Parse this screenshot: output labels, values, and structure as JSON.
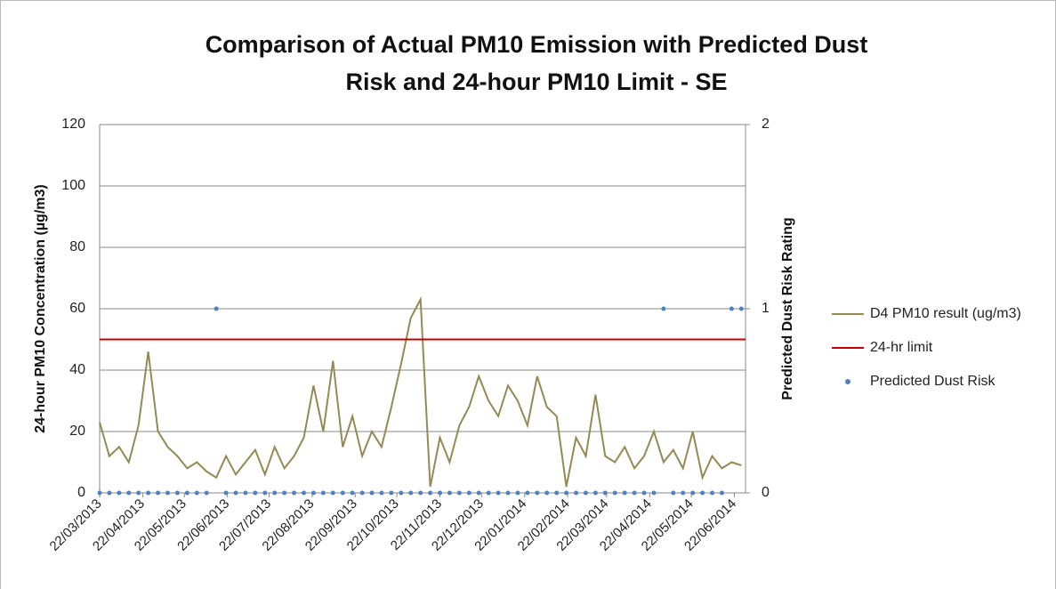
{
  "chart_data": {
    "type": "line",
    "title": [
      "Comparison of Actual PM10 Emission with Predicted Dust",
      "Risk and 24-hour PM10 Limit - SE"
    ],
    "y_label": "24-hour PM10 Concentration (µg/m3)",
    "y2_label": "Predicted Dust Risk Rating",
    "x": [
      "22/03/2013",
      "29/03/2013",
      "05/04/2013",
      "12/04/2013",
      "19/04/2013",
      "26/04/2013",
      "03/05/2013",
      "10/05/2013",
      "17/05/2013",
      "24/05/2013",
      "31/05/2013",
      "07/06/2013",
      "14/06/2013",
      "21/06/2013",
      "28/06/2013",
      "05/07/2013",
      "12/07/2013",
      "19/07/2013",
      "26/07/2013",
      "02/08/2013",
      "09/08/2013",
      "16/08/2013",
      "23/08/2013",
      "30/08/2013",
      "06/09/2013",
      "13/09/2013",
      "20/09/2013",
      "27/09/2013",
      "04/10/2013",
      "11/10/2013",
      "18/10/2013",
      "25/10/2013",
      "01/11/2013",
      "08/11/2013",
      "15/11/2013",
      "22/11/2013",
      "29/11/2013",
      "06/12/2013",
      "13/12/2013",
      "20/12/2013",
      "27/12/2013",
      "03/01/2014",
      "10/01/2014",
      "17/01/2014",
      "24/01/2014",
      "31/01/2014",
      "07/02/2014",
      "14/02/2014",
      "21/02/2014",
      "28/02/2014",
      "07/03/2014",
      "14/03/2014",
      "21/03/2014",
      "28/03/2014",
      "04/04/2014",
      "11/04/2014",
      "18/04/2014",
      "25/04/2014",
      "02/05/2014",
      "09/05/2014",
      "16/05/2014",
      "23/05/2014",
      "30/05/2014",
      "06/06/2014",
      "13/06/2014",
      "20/06/2014",
      "27/06/2014"
    ],
    "series": [
      {
        "name": "D4 PM10 result (ug/m3)",
        "type": "line",
        "color": "#948a54",
        "values": [
          23,
          12,
          15,
          10,
          22,
          46,
          20,
          15,
          12,
          8,
          10,
          7,
          5,
          12,
          6,
          10,
          14,
          6,
          15,
          8,
          12,
          18,
          35,
          20,
          43,
          15,
          25,
          12,
          20,
          15,
          28,
          42,
          57,
          63,
          2,
          18,
          10,
          22,
          28,
          38,
          30,
          25,
          35,
          30,
          22,
          38,
          28,
          25,
          2,
          18,
          12,
          32,
          12,
          10,
          15,
          8,
          12,
          20,
          10,
          14,
          8,
          20,
          5,
          12,
          8,
          10,
          9
        ]
      },
      {
        "name": "24-hr limit",
        "type": "hline",
        "color": "#c00000",
        "value": 50
      },
      {
        "name": "Predicted Dust Risk",
        "type": "scatter",
        "axis": "y2",
        "color": "#4f81bd",
        "values": [
          0,
          0,
          0,
          0,
          0,
          0,
          0,
          0,
          0,
          0,
          0,
          0,
          1,
          0,
          0,
          0,
          0,
          0,
          0,
          0,
          0,
          0,
          0,
          0,
          0,
          0,
          0,
          0,
          0,
          0,
          0,
          0,
          0,
          0,
          0,
          0,
          0,
          0,
          0,
          0,
          0,
          0,
          0,
          0,
          0,
          0,
          0,
          0,
          0,
          0,
          0,
          0,
          0,
          0,
          0,
          0,
          0,
          0,
          1,
          0,
          0,
          0,
          0,
          0,
          0,
          1,
          1
        ]
      }
    ],
    "xlim": [
      "22/03/2013",
      "30/06/2014"
    ],
    "xticks": [
      "22/03/2013",
      "22/04/2013",
      "22/05/2013",
      "22/06/2013",
      "22/07/2013",
      "22/08/2013",
      "22/09/2013",
      "22/10/2013",
      "22/11/2013",
      "22/12/2013",
      "22/01/2014",
      "22/02/2014",
      "22/03/2014",
      "22/04/2014",
      "22/05/2014",
      "22/06/2014"
    ],
    "ylim": [
      0,
      120
    ],
    "yticks": [
      0,
      20,
      40,
      60,
      80,
      100,
      120
    ],
    "y2lim": [
      0,
      2
    ],
    "y2ticks": [
      0,
      1,
      2
    ],
    "grid": true,
    "legend": "right"
  }
}
